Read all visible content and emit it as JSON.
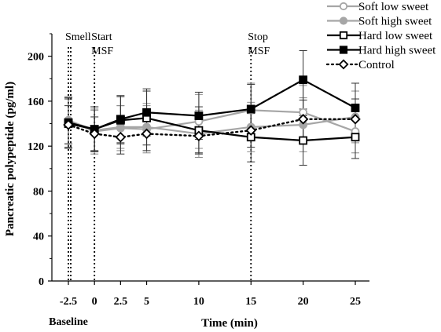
{
  "chart_data": {
    "type": "line",
    "ylabel": "Pancreatic polypeptide (pg/ml)",
    "xlabel": "Time (min)",
    "baseline_label": "Baseline",
    "ylim": [
      0,
      220
    ],
    "yticks": [
      0,
      20,
      40,
      60,
      80,
      100,
      120,
      140,
      160,
      180,
      200,
      220
    ],
    "x": [
      -2.5,
      0,
      2.5,
      5,
      10,
      15,
      20,
      25
    ],
    "xtick_labels": [
      "-2.5",
      "0",
      "2.5",
      "5",
      "10",
      "15",
      "20",
      "25"
    ],
    "grid": false,
    "legend_position": "top-right",
    "annotations": [
      {
        "x": -2.5,
        "lines": [
          "Smell"
        ]
      },
      {
        "x": 0,
        "lines": [
          "Start",
          "MSF"
        ]
      },
      {
        "x": 15,
        "lines": [
          "Stop",
          "MSF"
        ]
      }
    ],
    "series": [
      {
        "name": "Soft low sweet",
        "color": "#a6a6a6",
        "marker": "circle-open",
        "line": "solid",
        "values": [
          143,
          133,
          136,
          135,
          142,
          152,
          150,
          133
        ],
        "errors": [
          21,
          20,
          20,
          21,
          24,
          24,
          24,
          19
        ]
      },
      {
        "name": "Soft high sweet",
        "color": "#a6a6a6",
        "marker": "circle-filled",
        "line": "solid",
        "values": [
          143,
          134,
          137,
          137,
          131,
          137,
          139,
          146
        ],
        "errors": [
          21,
          18,
          19,
          21,
          21,
          22,
          24,
          23
        ]
      },
      {
        "name": "Hard low sweet",
        "color": "#000000",
        "marker": "square-open",
        "line": "solid",
        "values": [
          140,
          135,
          143,
          145,
          134,
          128,
          125,
          128
        ],
        "errors": [
          22,
          20,
          21,
          24,
          21,
          22,
          22,
          19
        ]
      },
      {
        "name": "Hard high sweet",
        "color": "#000000",
        "marker": "square-filled",
        "line": "solid",
        "values": [
          141,
          135,
          144,
          150,
          147,
          153,
          179,
          154
        ],
        "errors": [
          22,
          20,
          21,
          21,
          21,
          22,
          26,
          22
        ]
      },
      {
        "name": "Control",
        "color": "#000000",
        "marker": "diamond-open",
        "line": "dotted",
        "values": [
          139,
          131,
          128,
          131,
          129,
          134,
          144,
          144
        ],
        "errors": [
          17,
          15,
          15,
          15,
          15,
          15,
          17,
          18
        ]
      }
    ]
  }
}
